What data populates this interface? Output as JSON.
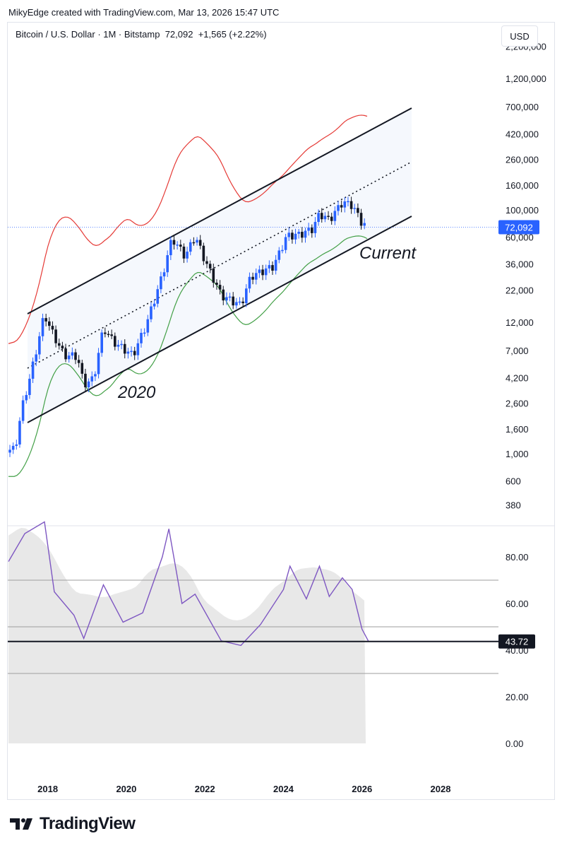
{
  "header": {
    "text": "MikyEdge created with TradingView.com, Mar 13, 2026 15:47 UTC"
  },
  "symbol": {
    "name": "Bitcoin / U.S. Dollar · 1M · Bitstamp",
    "last": "72,092",
    "change": "+1,565 (+2.22%)"
  },
  "currency_button": "USD",
  "footer": {
    "brand": "TradingView"
  },
  "colors": {
    "up": "#2962ff",
    "down": "#131722",
    "upper_band": "#e53935",
    "lower_band": "#43a047",
    "rsi_line": "#7e57c2",
    "channel_fill": "#f5f8fd"
  },
  "chart_data": [
    {
      "type": "candlestick",
      "title": "Bitcoin / U.S. Dollar · 1M · Bitstamp",
      "scale": "log",
      "last_price": 72092,
      "last_price_label": "72,092",
      "y_ticks": [
        "2,200,000",
        "1,200,000",
        "700,000",
        "420,000",
        "260,000",
        "160,000",
        "100,000",
        "60,000",
        "36,000",
        "22,000",
        "12,000",
        "7,000",
        "4,200",
        "2,600",
        "1,600",
        "1,000",
        "600",
        "380"
      ],
      "x_ticks": [
        "2018",
        "2020",
        "2022",
        "2024",
        "2026",
        "2028"
      ],
      "annotations": [
        "2020",
        "Current"
      ],
      "series": [
        {
          "name": "",
          "points": [
            {
              "date": "2017-03",
              "price": 1080
            },
            {
              "date": "2017-05",
              "price": 2300
            },
            {
              "date": "2017-08",
              "price": 4700
            },
            {
              "date": "2017-12",
              "price": 14000
            },
            {
              "date": "2018-02",
              "price": 10300
            },
            {
              "date": "2018-06",
              "price": 6400
            },
            {
              "date": "2018-10",
              "price": 6300
            },
            {
              "date": "2018-12",
              "price": 3700
            },
            {
              "date": "2019-03",
              "price": 4100
            },
            {
              "date": "2019-06",
              "price": 10800
            },
            {
              "date": "2019-09",
              "price": 8300
            },
            {
              "date": "2020-03",
              "price": 6400
            },
            {
              "date": "2020-07",
              "price": 11300
            },
            {
              "date": "2020-12",
              "price": 29000
            },
            {
              "date": "2021-03",
              "price": 58800
            },
            {
              "date": "2021-07",
              "price": 41500
            },
            {
              "date": "2021-10",
              "price": 61300
            },
            {
              "date": "2022-01",
              "price": 38500
            },
            {
              "date": "2022-06",
              "price": 19900
            },
            {
              "date": "2022-12",
              "price": 16500
            },
            {
              "date": "2023-03",
              "price": 28400
            },
            {
              "date": "2023-10",
              "price": 34600
            },
            {
              "date": "2024-02",
              "price": 61200
            },
            {
              "date": "2024-06",
              "price": 62700
            },
            {
              "date": "2024-10",
              "price": 70300
            },
            {
              "date": "2024-12",
              "price": 93400
            },
            {
              "date": "2025-03",
              "price": 82500
            },
            {
              "date": "2025-07",
              "price": 115800
            },
            {
              "date": "2025-10",
              "price": 109500
            },
            {
              "date": "2026-01",
              "price": 78000
            },
            {
              "date": "2026-03",
              "price": 72092
            }
          ]
        }
      ]
    },
    {
      "type": "line",
      "title": "",
      "last_value": 43.72,
      "last_value_label": "43.72",
      "y_ticks": [
        "80.00",
        "60.00",
        "40.00",
        "20.00",
        "0.00"
      ],
      "ylim": [
        0,
        100
      ],
      "levels": [
        70,
        50,
        30
      ],
      "series": [
        {
          "name": "",
          "points": [
            {
              "date": "2017-01",
              "value": 78
            },
            {
              "date": "2017-06",
              "value": 90
            },
            {
              "date": "2017-12",
              "value": 95
            },
            {
              "date": "2018-03",
              "value": 65
            },
            {
              "date": "2018-09",
              "value": 55
            },
            {
              "date": "2018-12",
              "value": 45
            },
            {
              "date": "2019-06",
              "value": 68
            },
            {
              "date": "2019-12",
              "value": 52
            },
            {
              "date": "2020-06",
              "value": 56
            },
            {
              "date": "2020-12",
              "value": 80
            },
            {
              "date": "2021-02",
              "value": 92
            },
            {
              "date": "2021-06",
              "value": 60
            },
            {
              "date": "2021-10",
              "value": 64
            },
            {
              "date": "2022-06",
              "value": 44
            },
            {
              "date": "2022-12",
              "value": 42
            },
            {
              "date": "2023-06",
              "value": 51
            },
            {
              "date": "2024-01",
              "value": 66
            },
            {
              "date": "2024-03",
              "value": 76
            },
            {
              "date": "2024-08",
              "value": 62
            },
            {
              "date": "2024-12",
              "value": 76
            },
            {
              "date": "2025-03",
              "value": 63
            },
            {
              "date": "2025-07",
              "value": 71
            },
            {
              "date": "2025-10",
              "value": 66
            },
            {
              "date": "2026-01",
              "value": 49
            },
            {
              "date": "2026-03",
              "value": 43.72
            }
          ]
        }
      ]
    }
  ]
}
